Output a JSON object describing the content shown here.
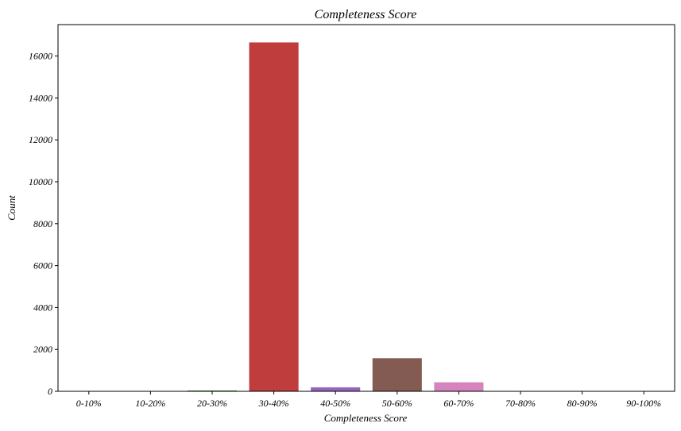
{
  "chart_data": {
    "type": "bar",
    "title": "Completeness Score",
    "xlabel": "Completeness Score",
    "ylabel": "Count",
    "categories": [
      "0-10%",
      "10-20%",
      "20-30%",
      "30-40%",
      "40-50%",
      "50-60%",
      "60-70%",
      "70-80%",
      "80-90%",
      "90-100%"
    ],
    "values": [
      0,
      0,
      40,
      16650,
      190,
      1580,
      430,
      0,
      0,
      0
    ],
    "colors": [
      "#1f77b4",
      "#ff7f0e",
      "#2ca02c",
      "#c03d3e",
      "#9467bd",
      "#845b53",
      "#d684bd",
      "#7f7f7f",
      "#bcbd22",
      "#17becf"
    ],
    "ylim": [
      0,
      17500
    ],
    "yticks": [
      0,
      2000,
      4000,
      6000,
      8000,
      10000,
      12000,
      14000,
      16000
    ],
    "grid": false,
    "legend": "none"
  }
}
